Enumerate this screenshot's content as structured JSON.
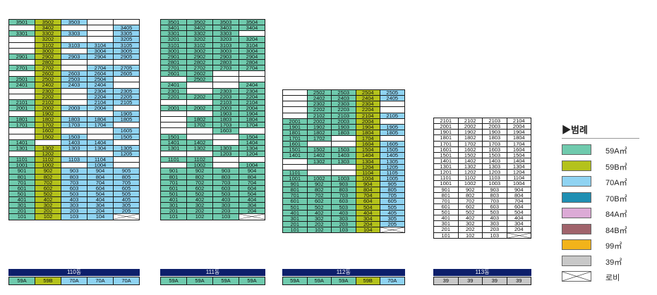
{
  "colors": {
    "59A": "#6fcaad",
    "59B": "#b4c21c",
    "70A": "#8fd3f2",
    "70B": "#1e8fb3",
    "84A": "#dcaad6",
    "84B": "#a0636b",
    "99": "#f2b31a",
    "39": "#c8c8c8",
    "empty": "#ffffff",
    "header": "#0d1f6b"
  },
  "legend": {
    "title": "▶범례",
    "items": [
      {
        "key": "59A",
        "label": "59A㎡",
        "name": "legend-59a"
      },
      {
        "key": "59B",
        "label": "59B㎡",
        "name": "legend-59b"
      },
      {
        "key": "70A",
        "label": "70A㎡",
        "name": "legend-70a"
      },
      {
        "key": "70B",
        "label": "70B㎡",
        "name": "legend-70b"
      },
      {
        "key": "84A",
        "label": "84A㎡",
        "name": "legend-84a"
      },
      {
        "key": "84B",
        "label": "84B㎡",
        "name": "legend-84b"
      },
      {
        "key": "99",
        "label": "99㎡",
        "name": "legend-99"
      },
      {
        "key": "39",
        "label": "39㎡",
        "name": "legend-39"
      },
      {
        "key": "lobby",
        "label": "로비",
        "name": "legend-lobby"
      }
    ]
  },
  "buildings": [
    {
      "name": "110동",
      "top_floor": 35,
      "columns": [
        "59A",
        "59B",
        "70A",
        "70A",
        "70A"
      ],
      "col_colors": [
        "59A",
        "59B",
        "70A",
        "70A",
        "70A"
      ],
      "missing": {
        "35": [
          4,
          5
        ],
        "34": [
          1,
          3,
          4
        ],
        "33": [
          4
        ],
        "32": [
          1,
          3,
          4
        ],
        "31": [
          1
        ],
        "30": [
          1,
          3
        ],
        "28": [
          1,
          3,
          4,
          5
        ],
        "27": [
          3
        ],
        "26": [
          1
        ],
        "25": [
          5
        ],
        "24": [
          5
        ],
        "23": [
          1,
          3
        ],
        "22": [
          1,
          3
        ],
        "21": [
          3
        ],
        "20": [
          5
        ],
        "19": [
          1,
          3,
          4
        ],
        "18": [],
        "17": [
          5
        ],
        "16": [
          1,
          3,
          4
        ],
        "15": [
          1,
          4
        ],
        "14": [
          2,
          5
        ],
        "13": [],
        "12": [
          1,
          3,
          4
        ],
        "11": [
          5
        ],
        "10": [
          3,
          5
        ]
      },
      "lobby": [
        5
      ],
      "types": [
        "59A",
        "59B",
        "70A",
        "70A",
        "70A"
      ]
    },
    {
      "name": "111동",
      "top_floor": 35,
      "columns": [
        "59A",
        "59A",
        "59A",
        "59A"
      ],
      "col_colors": [
        "59A",
        "59A",
        "59A",
        "59A"
      ],
      "missing": {
        "33": [
          4
        ],
        "26": [
          3,
          4
        ],
        "25": [
          1,
          3,
          4
        ],
        "24": [
          2,
          3
        ],
        "23": [
          2
        ],
        "21": [
          1,
          2
        ],
        "19": [
          1,
          2
        ],
        "18": [
          1
        ],
        "17": [
          1
        ],
        "16": [
          1,
          2,
          4
        ],
        "15": [
          2,
          3
        ],
        "14": [
          3
        ],
        "12": [
          1,
          2
        ],
        "11": [
          3,
          4
        ],
        "10": [
          1,
          3
        ]
      },
      "lobby": [
        4
      ],
      "types": [
        "59A",
        "59A",
        "59A",
        "59A"
      ]
    },
    {
      "name": "112동",
      "top_floor": 25,
      "columns": [
        "59A",
        "59A",
        "59A",
        "59B",
        "70A"
      ],
      "col_colors": [
        "59A",
        "59A",
        "59A",
        "59B",
        "70A"
      ],
      "missing": {
        "25": [
          1
        ],
        "24": [
          1
        ],
        "23": [
          1,
          5
        ],
        "22": [
          1,
          5
        ],
        "21": [
          1
        ],
        "20": [
          5
        ],
        "17": [
          3,
          5
        ],
        "16": [
          2,
          3
        ],
        "13": [
          1
        ],
        "12": [
          1,
          2,
          3
        ],
        "11": [
          2,
          3
        ],
        "10": []
      },
      "lobby": [
        5
      ],
      "types": [
        "59A",
        "59A",
        "59A",
        "59B",
        "70A"
      ]
    },
    {
      "name": "113동",
      "top_floor": 21,
      "columns": [
        "39",
        "39",
        "39",
        "39"
      ],
      "col_colors": [
        "empty",
        "empty",
        "empty",
        "empty"
      ],
      "missing": {},
      "lobby": [
        4
      ],
      "types": [
        "39",
        "39",
        "39",
        "39"
      ]
    }
  ]
}
